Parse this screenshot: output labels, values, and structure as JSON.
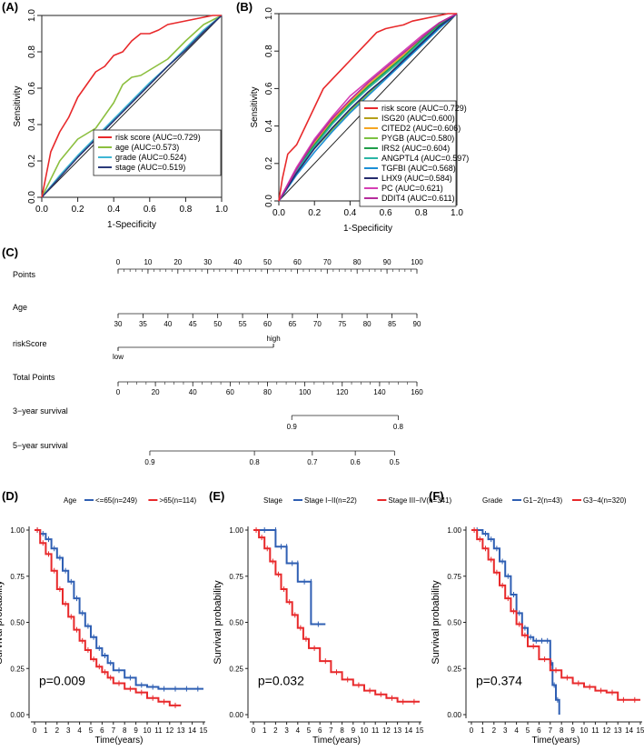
{
  "panels": {
    "A": "(A)",
    "B": "(B)",
    "C": "(C)",
    "D": "(D)",
    "E": "(E)",
    "F": "(F)"
  },
  "roc_ticks": [
    "0.0",
    "0.2",
    "0.4",
    "0.6",
    "0.8",
    "1.0"
  ],
  "km_yticks": [
    "0.00",
    "0.25",
    "0.50",
    "0.75",
    "1.00"
  ],
  "km_xticks": [
    "0",
    "1",
    "2",
    "3",
    "4",
    "5",
    "6",
    "7",
    "8",
    "9",
    "10",
    "11",
    "12",
    "13",
    "14",
    "15"
  ],
  "colors": {
    "red": "#e8292b",
    "blue": "#2f5fb3",
    "green": "#8cbf3f",
    "cyan": "#3fb6d4",
    "navy": "#2b3a7a",
    "black": "#222222"
  },
  "chart_data": [
    {
      "id": "A",
      "type": "line",
      "xlabel": "1-Specificity",
      "ylabel": "Sensitivity",
      "xlim": [
        0,
        1
      ],
      "ylim": [
        0,
        1
      ],
      "series": [
        {
          "name": "risk score (AUC=0.729)",
          "color": "#e8292b",
          "x": [
            0,
            0.02,
            0.05,
            0.1,
            0.15,
            0.2,
            0.25,
            0.3,
            0.35,
            0.4,
            0.45,
            0.5,
            0.55,
            0.6,
            0.65,
            0.7,
            0.75,
            0.8,
            0.85,
            0.9,
            0.95,
            1.0
          ],
          "y": [
            0,
            0.1,
            0.25,
            0.36,
            0.44,
            0.55,
            0.62,
            0.69,
            0.72,
            0.78,
            0.8,
            0.86,
            0.9,
            0.9,
            0.92,
            0.95,
            0.96,
            0.97,
            0.98,
            0.99,
            1.0,
            1.0
          ]
        },
        {
          "name": "age (AUC=0.573)",
          "color": "#8cbf3f",
          "x": [
            0,
            0.05,
            0.1,
            0.15,
            0.2,
            0.3,
            0.4,
            0.45,
            0.5,
            0.55,
            0.6,
            0.7,
            0.8,
            0.9,
            1.0
          ],
          "y": [
            0,
            0.1,
            0.2,
            0.26,
            0.32,
            0.38,
            0.52,
            0.62,
            0.66,
            0.67,
            0.7,
            0.76,
            0.86,
            0.95,
            1.0
          ]
        },
        {
          "name": "grade (AUC=0.524)",
          "color": "#3fb6d4",
          "x": [
            0,
            0.1,
            0.2,
            0.3,
            0.4,
            0.5,
            0.6,
            0.7,
            0.8,
            0.9,
            1.0
          ],
          "y": [
            0,
            0.12,
            0.23,
            0.33,
            0.43,
            0.53,
            0.63,
            0.72,
            0.82,
            0.92,
            1.0
          ]
        },
        {
          "name": "stage (AUC=0.519)",
          "color": "#2b3a7a",
          "x": [
            0,
            0.1,
            0.2,
            0.3,
            0.4,
            0.5,
            0.6,
            0.7,
            0.8,
            0.9,
            1.0
          ],
          "y": [
            0,
            0.11,
            0.22,
            0.32,
            0.42,
            0.52,
            0.62,
            0.72,
            0.81,
            0.91,
            1.0
          ]
        }
      ],
      "reference": true
    },
    {
      "id": "B",
      "type": "line",
      "xlabel": "1-Specificity",
      "ylabel": "Sensitivity",
      "xlim": [
        0,
        1
      ],
      "ylim": [
        0,
        1
      ],
      "series": [
        {
          "name": "risk score (AUC=0.729)",
          "color": "#e8292b",
          "x": [
            0,
            0.02,
            0.05,
            0.1,
            0.15,
            0.2,
            0.25,
            0.3,
            0.35,
            0.4,
            0.45,
            0.5,
            0.55,
            0.6,
            0.65,
            0.7,
            0.75,
            0.8,
            0.85,
            0.9,
            0.95,
            1.0
          ],
          "y": [
            0,
            0.12,
            0.25,
            0.3,
            0.4,
            0.5,
            0.6,
            0.65,
            0.7,
            0.75,
            0.8,
            0.85,
            0.9,
            0.92,
            0.93,
            0.94,
            0.96,
            0.97,
            0.98,
            0.99,
            1.0,
            1.0
          ]
        },
        {
          "name": "ISG20 (AUC=0.600)",
          "color": "#b5a019",
          "x": [
            0,
            0.1,
            0.2,
            0.3,
            0.4,
            0.5,
            0.6,
            0.7,
            0.8,
            0.9,
            1.0
          ],
          "y": [
            0,
            0.16,
            0.3,
            0.42,
            0.52,
            0.6,
            0.68,
            0.76,
            0.85,
            0.93,
            1.0
          ]
        },
        {
          "name": "CITED2 (AUC=0.606)",
          "color": "#f5a623",
          "x": [
            0,
            0.1,
            0.2,
            0.3,
            0.4,
            0.5,
            0.6,
            0.7,
            0.8,
            0.9,
            1.0
          ],
          "y": [
            0,
            0.17,
            0.31,
            0.43,
            0.53,
            0.62,
            0.7,
            0.78,
            0.87,
            0.95,
            1.0
          ]
        },
        {
          "name": "PYGB (AUC=0.580)",
          "color": "#7dc242",
          "x": [
            0,
            0.1,
            0.2,
            0.3,
            0.4,
            0.5,
            0.6,
            0.7,
            0.8,
            0.9,
            1.0
          ],
          "y": [
            0,
            0.15,
            0.28,
            0.38,
            0.48,
            0.57,
            0.66,
            0.75,
            0.84,
            0.93,
            1.0
          ]
        },
        {
          "name": "IRS2 (AUC=0.604)",
          "color": "#1f9e4a",
          "x": [
            0,
            0.1,
            0.2,
            0.3,
            0.4,
            0.5,
            0.6,
            0.7,
            0.8,
            0.9,
            1.0
          ],
          "y": [
            0,
            0.17,
            0.3,
            0.42,
            0.52,
            0.61,
            0.69,
            0.77,
            0.86,
            0.94,
            1.0
          ]
        },
        {
          "name": "ANGPTL4 (AUC=0.597)",
          "color": "#2bb5a5",
          "x": [
            0,
            0.1,
            0.2,
            0.3,
            0.4,
            0.5,
            0.6,
            0.7,
            0.8,
            0.9,
            1.0
          ],
          "y": [
            0,
            0.16,
            0.29,
            0.41,
            0.51,
            0.6,
            0.68,
            0.76,
            0.85,
            0.93,
            1.0
          ]
        },
        {
          "name": "TGFBI (AUC=0.568)",
          "color": "#1c8fd6",
          "x": [
            0,
            0.1,
            0.2,
            0.3,
            0.4,
            0.5,
            0.6,
            0.7,
            0.8,
            0.9,
            1.0
          ],
          "y": [
            0,
            0.14,
            0.26,
            0.37,
            0.47,
            0.56,
            0.65,
            0.74,
            0.83,
            0.92,
            1.0
          ]
        },
        {
          "name": "LHX9 (AUC=0.584)",
          "color": "#252b6e",
          "x": [
            0,
            0.1,
            0.2,
            0.3,
            0.4,
            0.5,
            0.6,
            0.7,
            0.8,
            0.9,
            1.0
          ],
          "y": [
            0,
            0.15,
            0.28,
            0.39,
            0.49,
            0.58,
            0.66,
            0.75,
            0.84,
            0.93,
            1.0
          ]
        },
        {
          "name": "PC (AUC=0.621)",
          "color": "#d63fb4",
          "x": [
            0,
            0.1,
            0.2,
            0.3,
            0.4,
            0.5,
            0.6,
            0.7,
            0.8,
            0.9,
            1.0
          ],
          "y": [
            0,
            0.18,
            0.33,
            0.45,
            0.56,
            0.64,
            0.72,
            0.8,
            0.88,
            0.95,
            1.0
          ]
        },
        {
          "name": "DDIT4 (AUC=0.611)",
          "color": "#b62c9c",
          "x": [
            0,
            0.1,
            0.2,
            0.3,
            0.4,
            0.5,
            0.6,
            0.7,
            0.8,
            0.9,
            1.0
          ],
          "y": [
            0,
            0.17,
            0.32,
            0.44,
            0.54,
            0.63,
            0.71,
            0.79,
            0.87,
            0.95,
            1.0
          ]
        }
      ],
      "reference": true
    },
    {
      "id": "C",
      "type": "nomogram",
      "rows": [
        {
          "label": "Points",
          "kind": "scale",
          "min": 0,
          "max": 100,
          "major": [
            0,
            10,
            20,
            30,
            40,
            50,
            60,
            70,
            80,
            90,
            100
          ],
          "minor_step": 2
        },
        {
          "label": "Age",
          "kind": "scale",
          "min": 30,
          "max": 90,
          "major": [
            30,
            35,
            40,
            45,
            50,
            55,
            60,
            65,
            70,
            75,
            80,
            85,
            90
          ],
          "minor_step": 5
        },
        {
          "label": "riskScore",
          "kind": "categorical",
          "low_label": "low",
          "high_label": "high",
          "low_points": 0,
          "high_points": 52
        },
        {
          "label": "Total Points",
          "kind": "scale",
          "min": 0,
          "max": 160,
          "major": [
            0,
            20,
            40,
            60,
            80,
            100,
            120,
            140,
            160
          ],
          "minor_step": 5
        },
        {
          "label": "3−year survival",
          "kind": "prob",
          "ticks": [
            {
              "label": "0.9",
              "total_points": 93
            },
            {
              "label": "0.8",
              "total_points": 150
            }
          ]
        },
        {
          "label": "5−year survival",
          "kind": "prob",
          "ticks": [
            {
              "label": "0.9",
              "total_points": 17
            },
            {
              "label": "0.8",
              "total_points": 73
            },
            {
              "label": "0.7",
              "total_points": 104
            },
            {
              "label": "0.6",
              "total_points": 127
            },
            {
              "label": "0.5",
              "total_points": 148
            }
          ]
        }
      ]
    },
    {
      "id": "D",
      "type": "line",
      "subtype": "kaplan-meier",
      "legend_title": "Age",
      "xlabel": "Time(years)",
      "ylabel": "Survival probability",
      "xlim": [
        0,
        15
      ],
      "ylim": [
        0,
        1
      ],
      "pvalue": "p=0.009",
      "series": [
        {
          "name": "<=65(n=249)",
          "color": "#2f5fb3",
          "x": [
            0,
            0.5,
            1,
            1.5,
            2,
            2.5,
            3,
            3.5,
            4,
            4.5,
            5,
            5.5,
            6,
            6.5,
            7,
            8,
            9,
            10,
            11,
            12,
            13,
            14,
            15
          ],
          "y": [
            1,
            0.98,
            0.95,
            0.9,
            0.85,
            0.78,
            0.72,
            0.63,
            0.55,
            0.48,
            0.42,
            0.36,
            0.32,
            0.28,
            0.24,
            0.2,
            0.16,
            0.15,
            0.14,
            0.14,
            0.14,
            0.14,
            0.14
          ]
        },
        {
          "name": ">65(n=114)",
          "color": "#e8292b",
          "x": [
            0,
            0.5,
            1,
            1.5,
            2,
            2.5,
            3,
            3.5,
            4,
            4.5,
            5,
            5.5,
            6,
            6.5,
            7,
            8,
            9,
            10,
            11,
            12,
            13
          ],
          "y": [
            1,
            0.93,
            0.87,
            0.78,
            0.68,
            0.6,
            0.53,
            0.46,
            0.4,
            0.35,
            0.3,
            0.26,
            0.23,
            0.2,
            0.17,
            0.14,
            0.12,
            0.09,
            0.07,
            0.05,
            0.05
          ]
        }
      ]
    },
    {
      "id": "E",
      "type": "line",
      "subtype": "kaplan-meier",
      "legend_title": "Stage",
      "xlabel": "Time(years)",
      "ylabel": "Survival probability",
      "xlim": [
        0,
        15
      ],
      "ylim": [
        0,
        1
      ],
      "pvalue": "p=0.032",
      "series": [
        {
          "name": "Stage I−II(n=22)",
          "color": "#2f5fb3",
          "x": [
            0,
            2,
            2,
            3,
            3,
            4,
            4,
            5.2,
            5.2,
            6.5
          ],
          "y": [
            1,
            1,
            0.91,
            0.91,
            0.82,
            0.82,
            0.72,
            0.72,
            0.49,
            0.49
          ]
        },
        {
          "name": "Stage III−IV(n=341)",
          "color": "#e8292b",
          "x": [
            0,
            0.5,
            1,
            1.5,
            2,
            2.5,
            3,
            3.5,
            4,
            4.5,
            5,
            6,
            7,
            8,
            9,
            10,
            11,
            12,
            13,
            14,
            15
          ],
          "y": [
            1,
            0.96,
            0.9,
            0.83,
            0.76,
            0.68,
            0.61,
            0.54,
            0.47,
            0.41,
            0.36,
            0.29,
            0.23,
            0.19,
            0.16,
            0.13,
            0.11,
            0.09,
            0.07,
            0.07,
            0.07
          ]
        }
      ]
    },
    {
      "id": "F",
      "type": "line",
      "subtype": "kaplan-meier",
      "legend_title": "Grade",
      "xlabel": "Time(years)",
      "ylabel": "Survival probability",
      "xlim": [
        0,
        15
      ],
      "ylim": [
        0,
        1
      ],
      "pvalue": "p=0.374",
      "series": [
        {
          "name": "G1−2(n=43)",
          "color": "#2f5fb3",
          "x": [
            0,
            1,
            1.5,
            2,
            2.5,
            3,
            3.5,
            4,
            4.5,
            5,
            5.5,
            6,
            6.5,
            7,
            7.2,
            7.5,
            7.8
          ],
          "y": [
            1,
            0.98,
            0.95,
            0.9,
            0.83,
            0.75,
            0.65,
            0.55,
            0.47,
            0.42,
            0.4,
            0.4,
            0.4,
            0.28,
            0.16,
            0.08,
            0
          ]
        },
        {
          "name": "G3−4(n=320)",
          "color": "#e8292b",
          "x": [
            0,
            0.5,
            1,
            1.5,
            2,
            2.5,
            3,
            3.5,
            4,
            4.5,
            5,
            6,
            7,
            8,
            9,
            10,
            11,
            12,
            13,
            14,
            15
          ],
          "y": [
            1,
            0.95,
            0.9,
            0.84,
            0.77,
            0.7,
            0.63,
            0.56,
            0.49,
            0.43,
            0.37,
            0.3,
            0.24,
            0.2,
            0.17,
            0.15,
            0.13,
            0.12,
            0.08,
            0.08,
            0.08
          ]
        }
      ]
    }
  ]
}
